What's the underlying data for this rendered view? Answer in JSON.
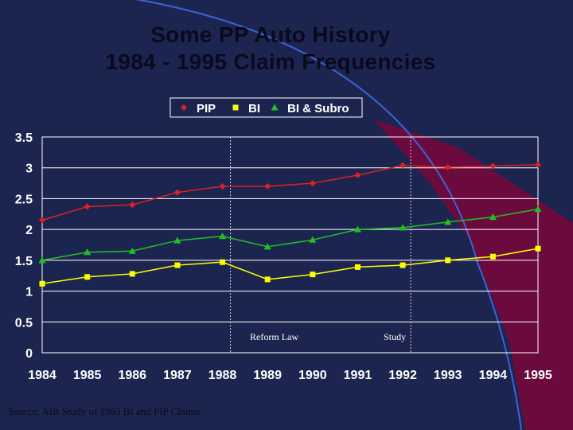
{
  "slide": {
    "title_line1": "Some PP Auto History",
    "title_line2": "1984 - 1995 Claim Frequencies",
    "source": "Source:  AIB Study of 1993 BI and PIP Claims"
  },
  "colors": {
    "background": "#1c2550",
    "swoosh": "#6b0a3c",
    "arc": "#3b63d6",
    "text": "#0a0a1e",
    "chart_bg": "#1c2550",
    "grid": "#ffffff"
  },
  "chart_data": {
    "type": "line",
    "x": [
      "1984",
      "1985",
      "1986",
      "1987",
      "1988",
      "1989",
      "1990",
      "1991",
      "1992",
      "1993",
      "1994",
      "1995"
    ],
    "ylim": [
      0,
      3.5
    ],
    "yticks": [
      "0",
      "0.5",
      "1",
      "1.5",
      "2",
      "2.5",
      "3",
      "3.5"
    ],
    "grid": true,
    "legend": "top-center",
    "series": [
      {
        "name": "PIP",
        "color": "#e02020",
        "marker": "diamond",
        "values": [
          2.15,
          2.37,
          2.4,
          2.6,
          2.7,
          2.7,
          2.75,
          2.88,
          3.04,
          3.01,
          3.03,
          3.05
        ]
      },
      {
        "name": "BI",
        "color": "#ffff00",
        "marker": "square",
        "values": [
          1.12,
          1.23,
          1.28,
          1.42,
          1.47,
          1.19,
          1.27,
          1.39,
          1.42,
          1.5,
          1.56,
          1.69
        ]
      },
      {
        "name": "BI & Subro",
        "color": "#22c022",
        "marker": "triangle",
        "values": [
          1.5,
          1.63,
          1.65,
          1.82,
          1.89,
          1.72,
          1.83,
          2.0,
          2.03,
          2.12,
          2.2,
          2.33
        ]
      }
    ],
    "annotations": [
      {
        "label": "Reform Law",
        "x": "1988"
      },
      {
        "label": "Study",
        "x": "1992"
      }
    ]
  }
}
